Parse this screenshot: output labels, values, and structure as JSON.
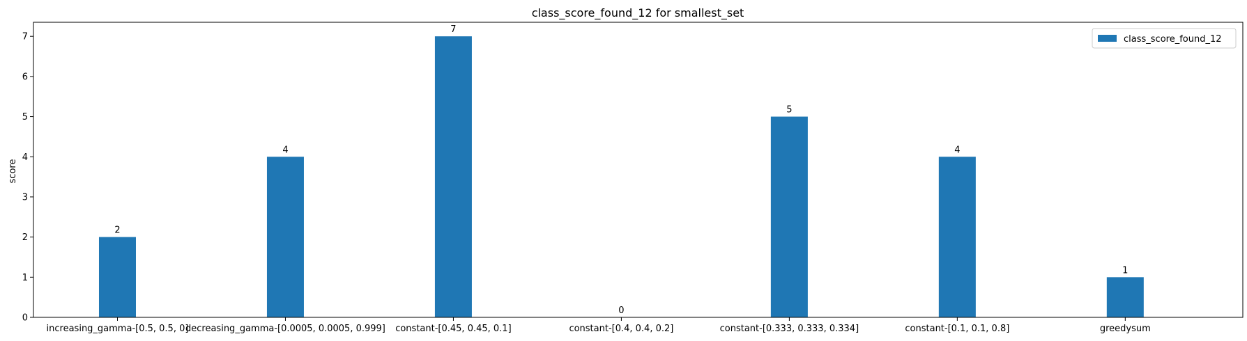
{
  "chart_data": {
    "type": "bar",
    "title": "class_score_found_12 for smallest_set",
    "xlabel": "",
    "ylabel": "score",
    "ylim": [
      0,
      7.35
    ],
    "yticks": [
      0,
      1,
      2,
      3,
      4,
      5,
      6,
      7
    ],
    "categories": [
      "increasing_gamma-[0.5, 0.5, 0]",
      "decreasing_gamma-[0.0005, 0.0005, 0.999]",
      "constant-[0.45, 0.45, 0.1]",
      "constant-[0.4, 0.4, 0.2]",
      "constant-[0.333, 0.333, 0.334]",
      "constant-[0.1, 0.1, 0.8]",
      "greedysum"
    ],
    "series": [
      {
        "name": "class_score_found_12",
        "values": [
          2,
          4,
          7,
          0,
          5,
          4,
          1
        ],
        "color": "#1f77b4"
      }
    ],
    "grid": false,
    "legend": "top-right"
  }
}
